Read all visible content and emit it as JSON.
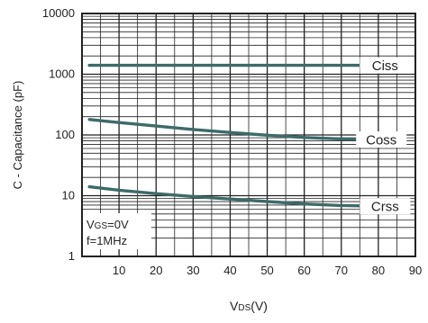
{
  "chart_data": {
    "type": "line",
    "xlabel": "VDS(V)",
    "xlabel_main": "V",
    "xlabel_sub": "DS",
    "xlabel_unit": "(V)",
    "ylabel": "C - Capacitance (pF)",
    "xlim": [
      0,
      90
    ],
    "ylim": [
      1,
      10000
    ],
    "y_scale": "log",
    "grid": true,
    "x_ticks": [
      10,
      20,
      30,
      40,
      50,
      60,
      70,
      80,
      90
    ],
    "y_ticks": [
      1,
      10,
      100,
      1000,
      10000
    ],
    "conditions_line1_main": "V",
    "conditions_line1_sub": "GS",
    "conditions_line1_rest": "=0V",
    "conditions_line2": "f=1MHz",
    "series": [
      {
        "name": "Ciss",
        "label_x": 75,
        "x": [
          2,
          10,
          20,
          30,
          40,
          50,
          60,
          70,
          80,
          83
        ],
        "values": [
          1400,
          1400,
          1400,
          1400,
          1400,
          1400,
          1400,
          1400,
          1400,
          1400
        ]
      },
      {
        "name": "Coss",
        "label_x": 74,
        "x": [
          2,
          10,
          20,
          30,
          40,
          50,
          60,
          70,
          80,
          83
        ],
        "values": [
          180,
          160,
          140,
          123,
          110,
          99,
          91,
          86,
          84,
          84
        ]
      },
      {
        "name": "Crss",
        "label_x": 75,
        "x": [
          2,
          10,
          20,
          30,
          40,
          50,
          60,
          70,
          80,
          83
        ],
        "values": [
          14,
          12.3,
          10.8,
          9.7,
          8.8,
          8.0,
          7.3,
          6.9,
          6.7,
          6.6
        ]
      }
    ]
  },
  "colors": {
    "series": "#3d6b68",
    "grid": "#222222",
    "text": "#222222"
  }
}
